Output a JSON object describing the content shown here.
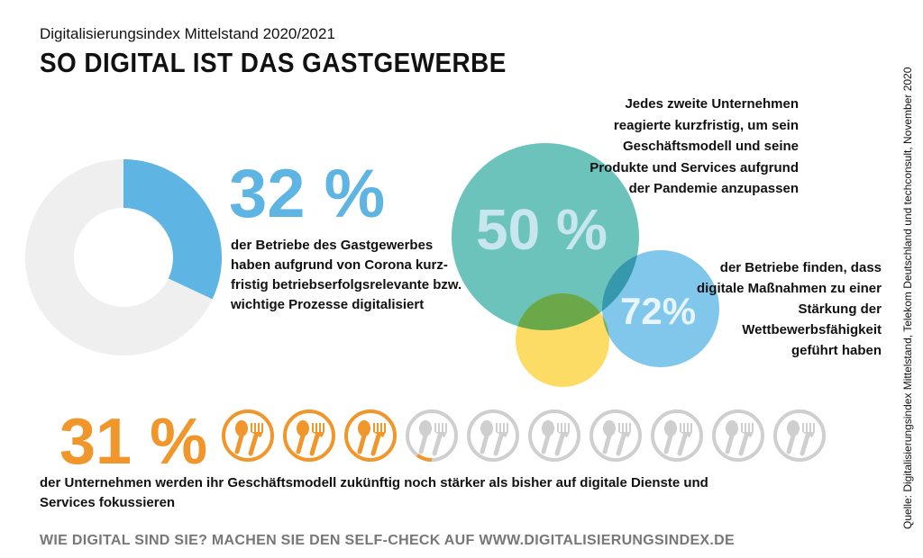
{
  "subtitle": "Digitalisierungsindex Mittelstand 2020/2021",
  "title": "SO DIGITAL IST DAS GASTGEWERBE",
  "stat1": {
    "value": "32 %",
    "fraction": 0.32,
    "text": "der Betriebe des Gastgewerbes haben aufgrund von Corona kurz-fristig betriebserfolgsrelevante bzw. wichtige Prozesse digitalisiert",
    "color": "#5eb4e2"
  },
  "stat2": {
    "value": "50 %",
    "text": "Jedes zweite Unternehmen reagierte kurzfristig, um sein Geschäftsmodell und seine Produkte und Services aufgrund der Pandemie anzupassen",
    "color": "#5bbcb4"
  },
  "stat3": {
    "value": "72%",
    "text": "der Betriebe finden, dass digitale Maßnahmen zu einer Stärkung der Wettbewerbsfähigkeit geführt haben",
    "color": "#6bbde8"
  },
  "stat4": {
    "value": "31 %",
    "fraction": 0.31,
    "icons": 10,
    "icon": "spoon-fork-plate-icon",
    "text": "der Unternehmen werden ihr Geschäftsmodell zukünftig noch stärker als bisher auf digitale Dienste und Services fokussieren",
    "color": "#f0962a"
  },
  "cta": "WIE DIGITAL SIND SIE? MACHEN SIE DEN SELF-CHECK AUF WWW.DIGITALISIERUNGSINDEX.DE",
  "source": "Quelle: Digitalisierungsindex Mittelstand, Telekom Deutschland und techconsult, November 2020"
}
